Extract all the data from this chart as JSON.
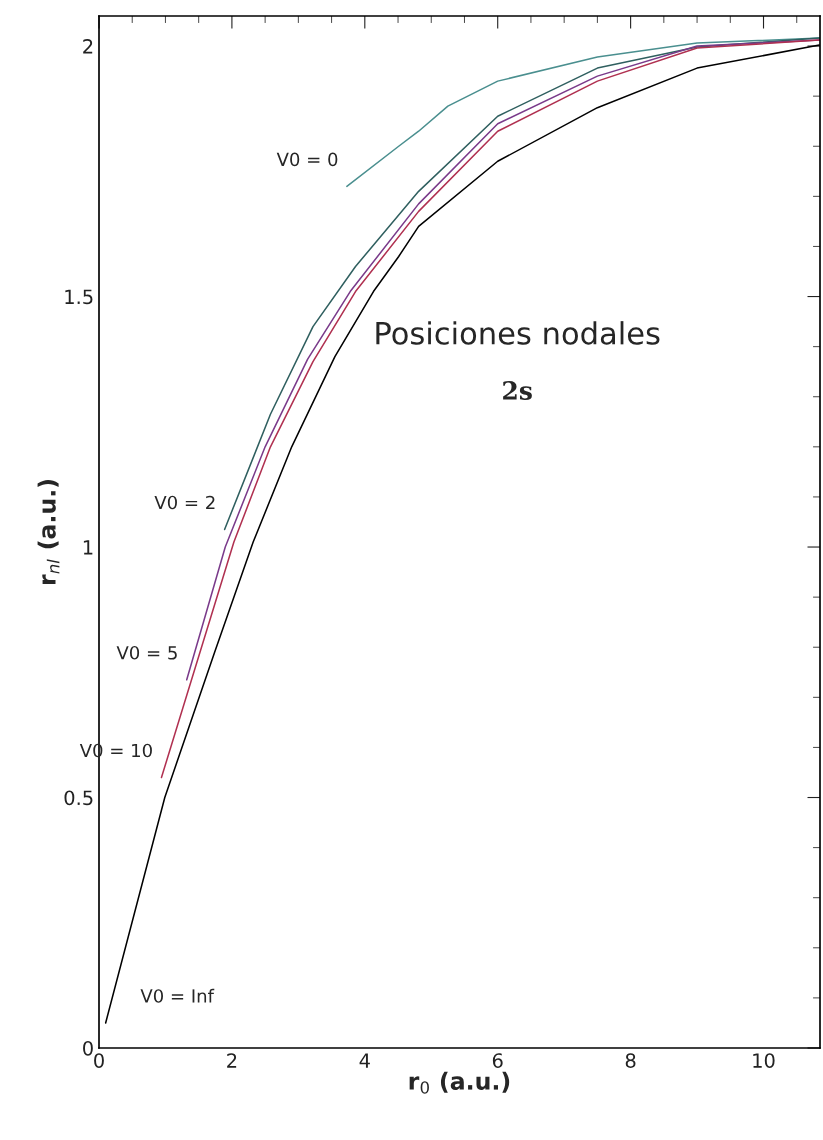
{
  "chart_data": {
    "type": "line",
    "xlabel": "r$_{0}$ (a.u.)",
    "ylabel": "r$_{nl}$ (a.u.)",
    "annotations": [
      "Posiciones nodales",
      "2s"
    ],
    "series": [
      {
        "name": "V0 = 0",
        "color": "#4a8f8f",
        "x": [
          3.73,
          4.51,
          4.81,
          5.25,
          6.0,
          7.5,
          9.0,
          10.84
        ],
        "values": [
          1.72,
          1.8,
          1.83,
          1.88,
          1.93,
          1.978,
          2.006,
          2.016
        ]
      },
      {
        "name": "V0 = 2",
        "color": "#2f5f5f",
        "x": [
          1.89,
          2.58,
          3.22,
          3.86,
          4.81,
          6.0,
          7.5,
          9.0,
          10.84
        ],
        "values": [
          1.035,
          1.265,
          1.44,
          1.56,
          1.71,
          1.86,
          1.956,
          1.998,
          2.016
        ]
      },
      {
        "name": "V0 = 5",
        "color": "#7a3a8a",
        "x": [
          1.32,
          1.9,
          2.5,
          3.14,
          3.78,
          4.81,
          6.0,
          7.5,
          9.0,
          10.84
        ],
        "values": [
          0.735,
          1.0,
          1.2,
          1.375,
          1.51,
          1.685,
          1.845,
          1.94,
          2.0,
          2.012
        ]
      },
      {
        "name": "V0 = 10",
        "color": "#b03050",
        "x": [
          0.94,
          2.03,
          2.58,
          3.22,
          3.86,
          4.81,
          6.0,
          7.5,
          9.0,
          10.84
        ],
        "values": [
          0.54,
          1.01,
          1.2,
          1.37,
          1.51,
          1.67,
          1.83,
          1.93,
          1.996,
          2.012
        ]
      },
      {
        "name": "V0 = Inf",
        "color": "#000000",
        "x": [
          0.1,
          0.99,
          1.74,
          2.32,
          2.9,
          3.55,
          4.13,
          4.51,
          4.81,
          6.0,
          7.5,
          9.0,
          10.84
        ],
        "values": [
          0.05,
          0.5,
          0.79,
          1.01,
          1.2,
          1.38,
          1.51,
          1.58,
          1.64,
          1.77,
          1.877,
          1.956,
          2.002
        ]
      }
    ],
    "xlim": [
      0,
      10.85
    ],
    "ylim": [
      0,
      2.06
    ],
    "xticks": [
      0,
      {
        "value": 0.5,
        "label": null
      },
      {
        "value": 1,
        "label": null
      },
      {
        "value": 1.5,
        "label": null
      },
      2,
      {
        "value": 2.5,
        "label": null
      },
      {
        "value": 3,
        "label": null
      },
      {
        "value": 3.5,
        "label": null
      },
      4,
      {
        "value": 4.5,
        "label": null
      },
      {
        "value": 5,
        "label": null
      },
      {
        "value": 5.5,
        "label": null
      },
      6,
      {
        "value": 6.5,
        "label": null
      },
      {
        "value": 7,
        "label": null
      },
      {
        "value": 7.5,
        "label": null
      },
      8,
      {
        "value": 8.5,
        "label": null
      },
      {
        "value": 9,
        "label": null
      },
      {
        "value": 9.5,
        "label": null
      },
      10,
      {
        "value": 10.5,
        "label": null
      }
    ],
    "yticks": [
      0,
      {
        "value": 0.1,
        "label": null
      },
      {
        "value": 0.2,
        "label": null
      },
      {
        "value": 0.3,
        "label": null
      },
      {
        "value": 0.4,
        "label": null
      },
      0.5,
      {
        "value": 0.6,
        "label": null
      },
      {
        "value": 0.7,
        "label": null
      },
      {
        "value": 0.8,
        "label": null
      },
      {
        "value": 0.9,
        "label": null
      },
      1,
      {
        "value": 1.1,
        "label": null
      },
      {
        "value": 1.2,
        "label": null
      },
      {
        "value": 1.3,
        "label": null
      },
      {
        "value": 1.4,
        "label": null
      },
      1.5,
      {
        "value": 1.6,
        "label": null
      },
      {
        "value": 1.7,
        "label": null
      },
      {
        "value": 1.8,
        "label": null
      },
      {
        "value": 1.9,
        "label": null
      },
      2
    ],
    "grid": false,
    "legend": false,
    "marker": "none",
    "line_style": "solid"
  }
}
